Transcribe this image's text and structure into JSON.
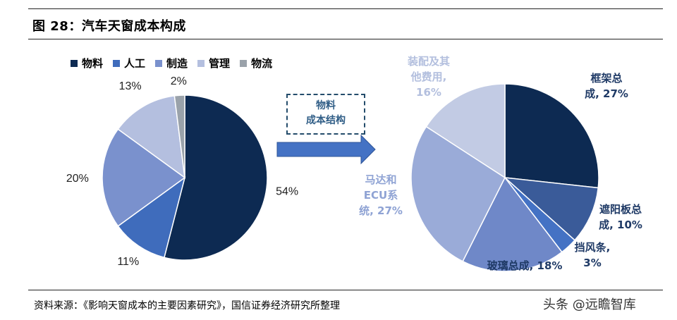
{
  "figure_title": "图 28：汽车天窗成本构成",
  "center_box": {
    "line1": "物料",
    "line2": "成本结构"
  },
  "source_note": "资料来源：《影响天窗成本的主要因素研究》，国信证券经济研究所整理",
  "watermark": "头条 @远瞻智库",
  "chart_data": [
    {
      "type": "pie",
      "title": "",
      "legend_position": "top",
      "labels": [
        "物料",
        "人工",
        "制造",
        "管理",
        "物流"
      ],
      "values": [
        54,
        11,
        20,
        13,
        2
      ],
      "value_labels": [
        "54%",
        "11%",
        "20%",
        "13%",
        "2%"
      ],
      "colors": [
        "#0d2a52",
        "#3f6cbc",
        "#7a91cd",
        "#b4bfdf",
        "#9aa2aa"
      ]
    },
    {
      "type": "pie",
      "title": "",
      "labels": [
        "框架总成",
        "遮阳板总成",
        "挡风条",
        "玻璃总成",
        "马达和ECU系统",
        "装配及其他费用"
      ],
      "values": [
        27,
        10,
        3,
        18,
        27,
        16
      ],
      "value_labels": [
        "框架总\n成, 27%",
        "遮阳板总\n成, 10%",
        "挡风条,\n3%",
        "玻璃总成, 18%",
        "马达和\nECU系\n统, 27%",
        "装配及其\n他费用,\n16%"
      ],
      "colors": [
        "#0d2a52",
        "#3a5b99",
        "#4472c4",
        "#6f88c8",
        "#9aabd8",
        "#c2cbe4"
      ],
      "label_colors": [
        "#1f3a66",
        "#1f3a66",
        "#1f3a66",
        "#1f3a66",
        "#8fa3d4",
        "#b3bfde"
      ]
    }
  ]
}
